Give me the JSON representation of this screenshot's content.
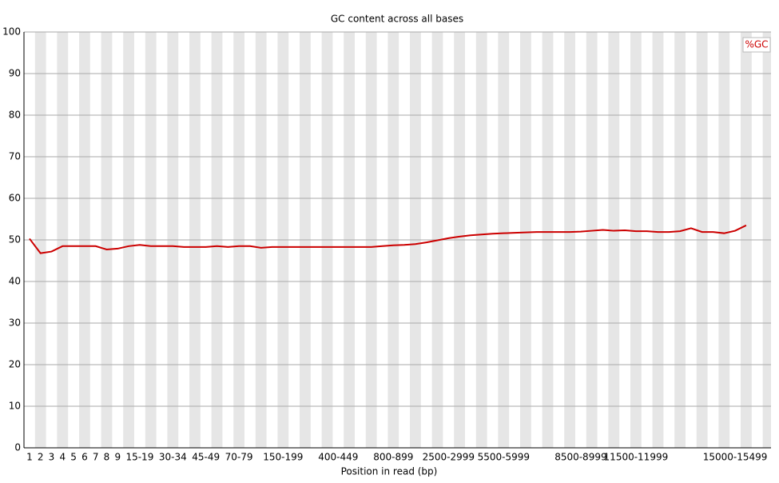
{
  "chart_data": {
    "type": "line",
    "title": "GC content across all bases",
    "xlabel": "Position in read (bp)",
    "categories": [
      "1",
      "2",
      "3",
      "4",
      "5",
      "6",
      "7",
      "8",
      "9",
      null,
      "15-19",
      null,
      null,
      "30-34",
      null,
      null,
      "45-49",
      null,
      null,
      "70-79",
      null,
      null,
      null,
      "150-199",
      null,
      null,
      null,
      null,
      "400-449",
      null,
      null,
      null,
      null,
      "800-899",
      null,
      null,
      null,
      null,
      "2500-2999",
      null,
      null,
      null,
      null,
      "5500-5999",
      null,
      null,
      null,
      null,
      null,
      null,
      "8500-8999",
      null,
      null,
      null,
      null,
      "11500-11999",
      null,
      null,
      null,
      null,
      null,
      null,
      null,
      null,
      "15000-15499",
      null
    ],
    "series": [
      {
        "name": "%GC",
        "color": "#cc0000",
        "values": [
          50.3,
          46.8,
          47.2,
          48.5,
          48.5,
          48.5,
          48.5,
          47.7,
          47.9,
          48.5,
          48.8,
          48.5,
          48.5,
          48.5,
          48.3,
          48.3,
          48.3,
          48.5,
          48.3,
          48.5,
          48.5,
          48.1,
          48.3,
          48.3,
          48.3,
          48.3,
          48.3,
          48.3,
          48.3,
          48.3,
          48.3,
          48.3,
          48.5,
          48.7,
          48.8,
          49.0,
          49.4,
          49.9,
          50.4,
          50.8,
          51.1,
          51.3,
          51.5,
          51.6,
          51.7,
          51.8,
          51.9,
          51.9,
          51.9,
          51.9,
          52.0,
          52.2,
          52.4,
          52.2,
          52.3,
          52.1,
          52.1,
          51.9,
          51.9,
          52.1,
          52.8,
          51.9,
          51.9,
          51.6,
          52.2,
          53.5
        ]
      }
    ],
    "ylim": [
      0,
      100
    ],
    "yticks": [
      0,
      10,
      20,
      30,
      40,
      50,
      60,
      70,
      80,
      90,
      100
    ],
    "grid": true,
    "legend": "top-right"
  }
}
